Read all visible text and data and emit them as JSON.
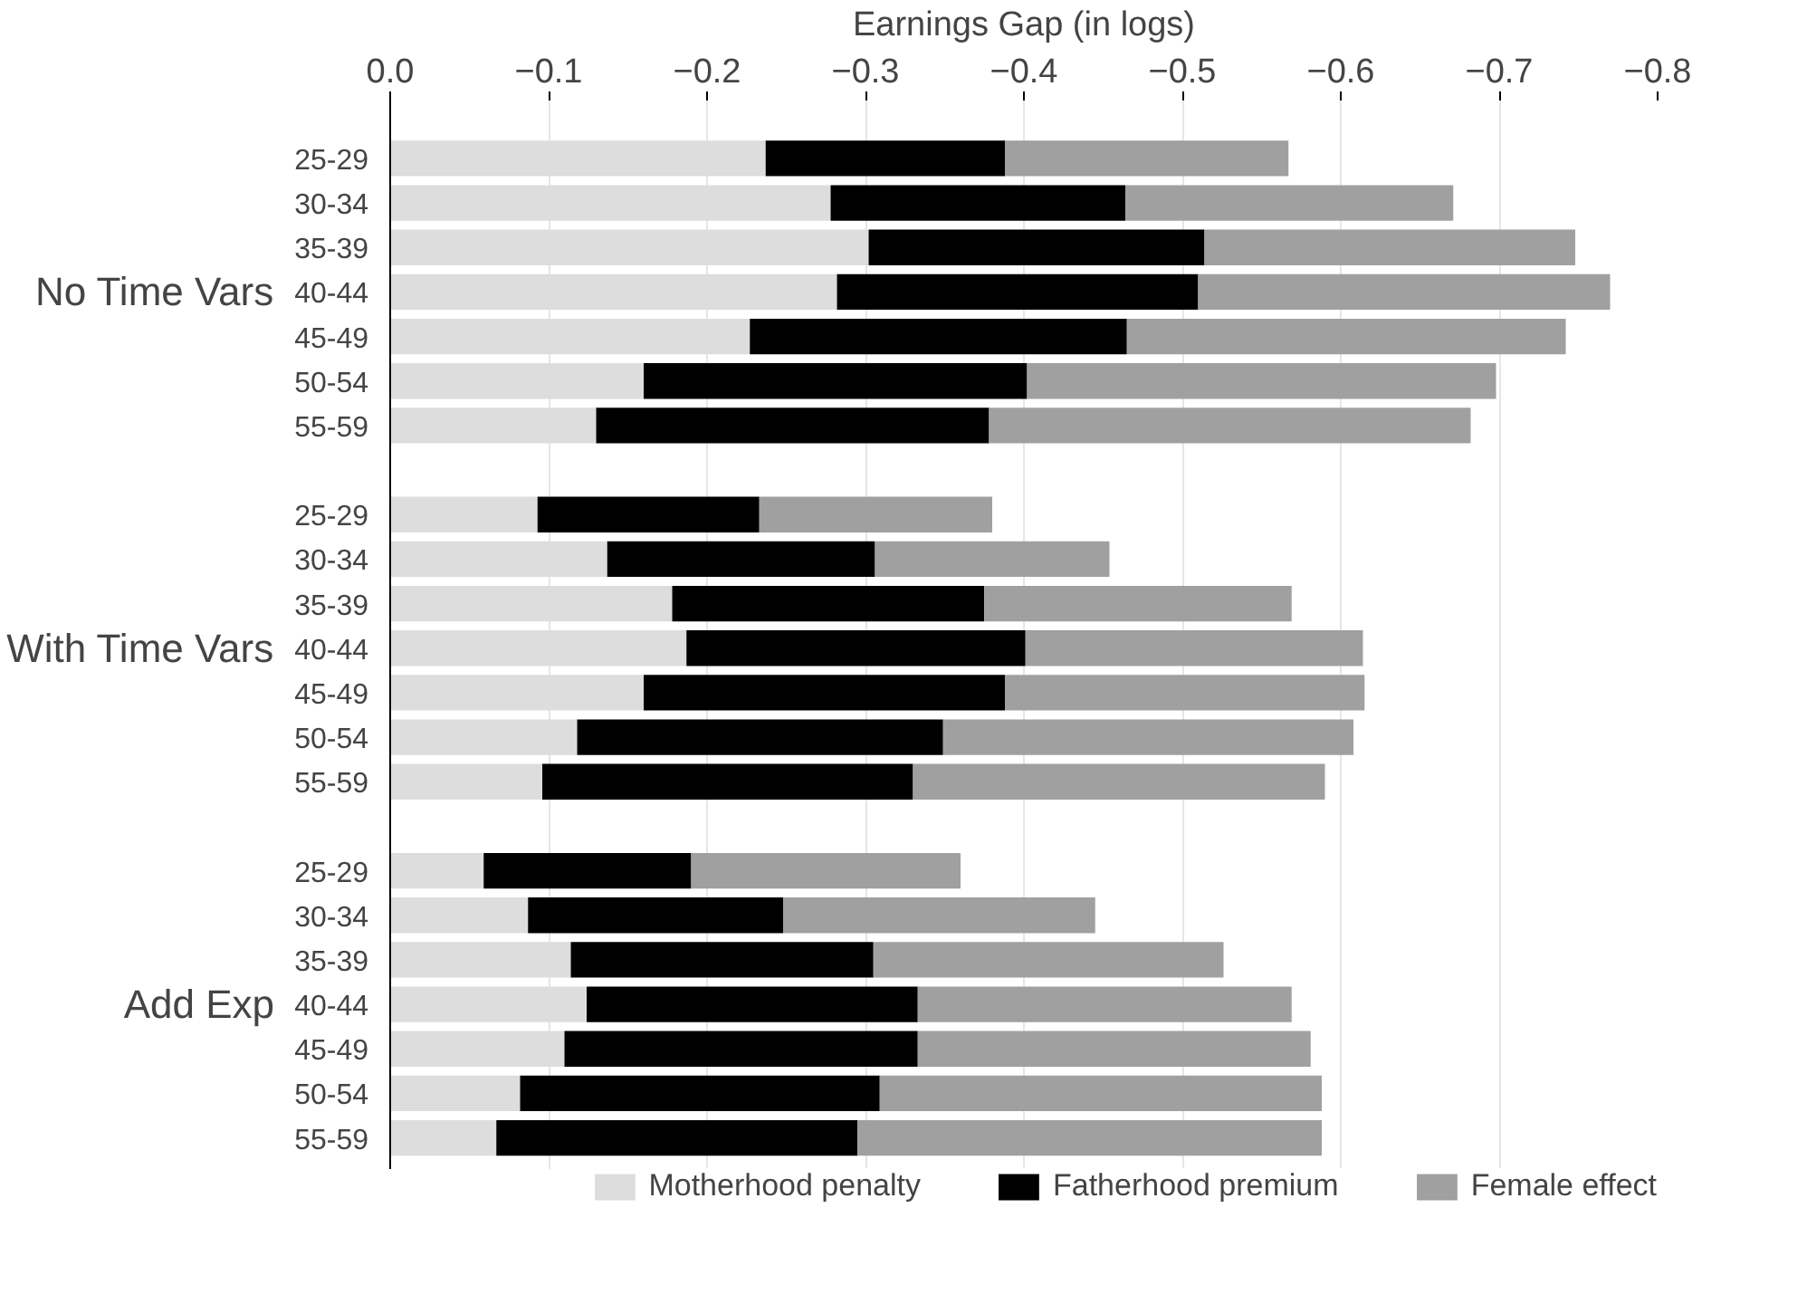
{
  "chart_data": {
    "type": "bar",
    "orientation": "horizontal",
    "stacked": true,
    "xlabel": "Earnings Gap (in logs)",
    "xlim": [
      0,
      -0.8
    ],
    "xticks": [
      {
        "value": 0,
        "label": "0.0"
      },
      -0.1,
      -0.2,
      -0.3,
      -0.4,
      -0.5,
      -0.6,
      -0.7,
      -0.8
    ],
    "categories": [
      "25-29",
      "30-34",
      "35-39",
      "40-44",
      "45-49",
      "50-54",
      "55-59",
      null,
      "25-29",
      "30-34",
      "35-39",
      "40-44",
      "45-49",
      "50-54",
      "55-59",
      null,
      "25-29",
      "30-34",
      "35-39",
      "40-44",
      "45-49",
      "50-54",
      "55-59"
    ],
    "annotations": [
      "No Time Vars",
      "With Time Vars",
      "Add Exp"
    ],
    "series": [
      {
        "name": "Motherhood penalty",
        "color": "#dddddd",
        "values": [
          -0.237,
          -0.278,
          -0.302,
          -0.282,
          -0.227,
          -0.16,
          -0.13,
          null,
          -0.093,
          -0.137,
          -0.178,
          -0.187,
          -0.16,
          -0.118,
          -0.096,
          null,
          -0.059,
          -0.087,
          -0.114,
          -0.124,
          -0.11,
          -0.082,
          -0.067
        ]
      },
      {
        "name": "Fatherhood premium",
        "color": "#000000",
        "values": [
          -0.151,
          -0.186,
          -0.212,
          -0.228,
          -0.238,
          -0.242,
          -0.248,
          null,
          -0.14,
          -0.169,
          -0.197,
          -0.214,
          -0.228,
          -0.231,
          -0.234,
          null,
          -0.131,
          -0.161,
          -0.191,
          -0.209,
          -0.223,
          -0.227,
          -0.228
        ]
      },
      {
        "name": "Female effect",
        "color": "#a0a0a0",
        "values": [
          -0.179,
          -0.207,
          -0.234,
          -0.26,
          -0.277,
          -0.296,
          -0.304,
          null,
          -0.147,
          -0.148,
          -0.194,
          -0.213,
          -0.227,
          -0.259,
          -0.26,
          null,
          -0.17,
          -0.197,
          -0.221,
          -0.236,
          -0.248,
          -0.279,
          -0.293
        ]
      }
    ],
    "grid": "x",
    "legend": "bottom"
  }
}
